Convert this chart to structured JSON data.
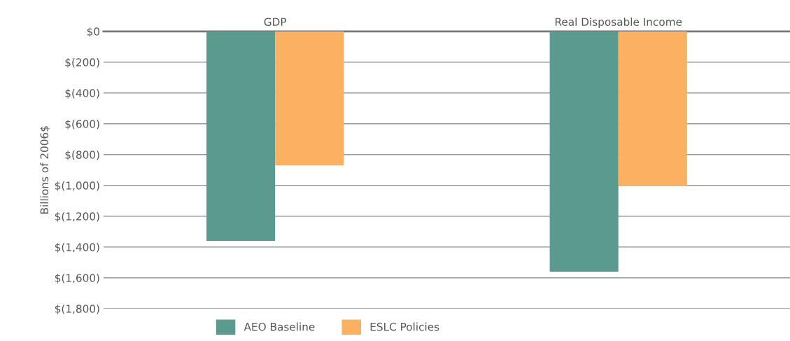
{
  "chart_data": {
    "type": "bar",
    "ylabel": "Billions of 2006$",
    "categories": [
      "GDP",
      "Real Disposable Income"
    ],
    "series": [
      {
        "name": "AEO Baseline",
        "color": "#5a9a8f",
        "values": [
          -1360,
          -1560
        ]
      },
      {
        "name": "ESLC Policies",
        "color": "#fbb161",
        "values": [
          -870,
          -1000
        ]
      }
    ],
    "ylim": [
      -1800,
      0
    ],
    "yticks": [
      {
        "value": 0,
        "label": "$0"
      },
      {
        "value": -200,
        "label": "$(200)"
      },
      {
        "value": -400,
        "label": "$(400)"
      },
      {
        "value": -600,
        "label": "$(600)"
      },
      {
        "value": -800,
        "label": "$(800)"
      },
      {
        "value": -1000,
        "label": "$(1,000)"
      },
      {
        "value": -1200,
        "label": "$(1,200)"
      },
      {
        "value": -1400,
        "label": "$(1,400)"
      },
      {
        "value": -1600,
        "label": "$(1,600)"
      },
      {
        "value": -1800,
        "label": "$(1,800)"
      }
    ],
    "grid": "y",
    "legend": "bottom"
  }
}
